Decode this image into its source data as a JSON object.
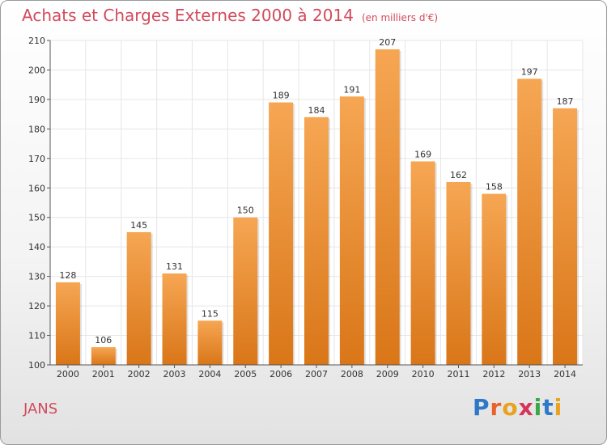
{
  "header": {
    "title": "Achats et Charges Externes 2000 à 2014",
    "subtitle": "(en milliers d'€)"
  },
  "footer": {
    "commune": "JANS",
    "logo": {
      "letters": [
        "P",
        "r",
        "o",
        "x",
        "i",
        "t",
        "i"
      ],
      "colors": [
        "#2e78c8",
        "#e8622a",
        "#e8a21e",
        "#d7345a",
        "#3aa84a",
        "#2e78c8",
        "#e8a21e"
      ]
    }
  },
  "colors": {
    "bar_light": "#f6a653",
    "bar_dark": "#d97618",
    "title": "#d24a5c",
    "grid": "#e6e6e6"
  },
  "chart_data": {
    "type": "bar",
    "title": "Achats et Charges Externes 2000 à 2014",
    "subtitle": "(en milliers d'€)",
    "categories": [
      "2000",
      "2001",
      "2002",
      "2003",
      "2004",
      "2005",
      "2006",
      "2007",
      "2008",
      "2009",
      "2010",
      "2011",
      "2012",
      "2013",
      "2014"
    ],
    "values": [
      128,
      106,
      145,
      131,
      115,
      150,
      189,
      184,
      191,
      207,
      169,
      162,
      158,
      197,
      187
    ],
    "ylim": [
      100,
      210
    ],
    "yticks": [
      100,
      110,
      120,
      130,
      140,
      150,
      160,
      170,
      180,
      190,
      200,
      210
    ],
    "grid": true,
    "data_labels": true
  }
}
